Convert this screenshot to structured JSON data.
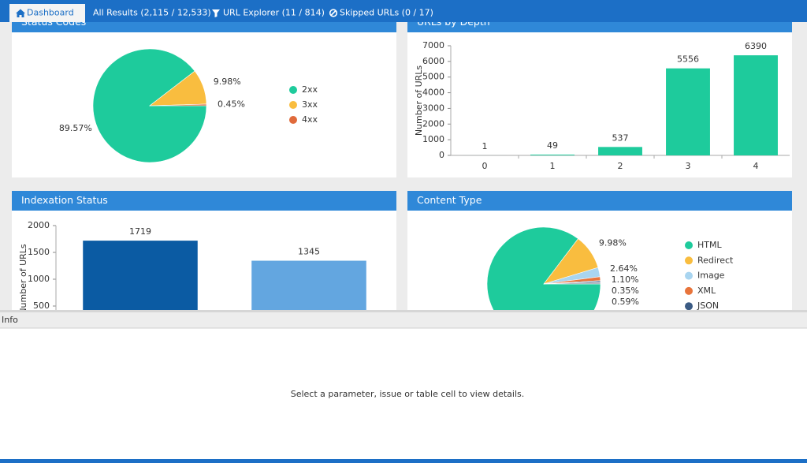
{
  "tabs": [
    "Dashboard",
    "All Results (2,115 / 12,533)",
    "URL Explorer (11 / 814)",
    "Skipped URLs (0 / 17)"
  ],
  "chart_data": [
    {
      "type": "pie",
      "title": "Status Codes",
      "categories": [
        "2xx",
        "3xx",
        "4xx"
      ],
      "values": [
        89.57,
        9.98,
        0.45
      ],
      "value_labels": [
        "89.57%",
        "9.98%",
        "0.45%"
      ],
      "colors": [
        "#1ecb9c",
        "#f9bd3f",
        "#e06a3b"
      ]
    },
    {
      "type": "bar",
      "title": "URLs by Depth",
      "y_label": "Number of URLs",
      "categories": [
        "0",
        "1",
        "2",
        "3",
        "4"
      ],
      "values": [
        1,
        49,
        537,
        5556,
        6390
      ],
      "color": "#1ecb9c",
      "ylim": [
        0,
        7000
      ],
      "yticks": [
        0,
        1000,
        2000,
        3000,
        4000,
        5000,
        6000,
        7000
      ]
    },
    {
      "type": "bar",
      "title": "Indexation Status",
      "y_label": "Number of URLs",
      "categories": [
        null,
        null
      ],
      "values": [
        1719,
        1345
      ],
      "colors": [
        "#0b5ba3",
        "#63a6e0"
      ],
      "ylim": [
        0,
        2000
      ],
      "yticks": [
        500,
        1000,
        1500,
        2000
      ]
    },
    {
      "type": "pie",
      "title": "Content Type",
      "categories": [
        "HTML",
        "Redirect",
        "Image",
        "XML",
        "JSON",
        null
      ],
      "values": [
        85.34,
        9.98,
        2.64,
        1.1,
        0.35,
        0.59
      ],
      "value_labels": [
        null,
        "9.98%",
        "2.64%",
        "1.10%",
        "0.35%",
        "0.59%"
      ],
      "colors": [
        "#1ecb9c",
        "#f9bd3f",
        "#a9d5f0",
        "#e8743b",
        "#3b5b84",
        "#9aa5b1"
      ]
    }
  ],
  "info": {
    "title": "Info",
    "message": "Select a parameter, issue or table cell to view details."
  }
}
